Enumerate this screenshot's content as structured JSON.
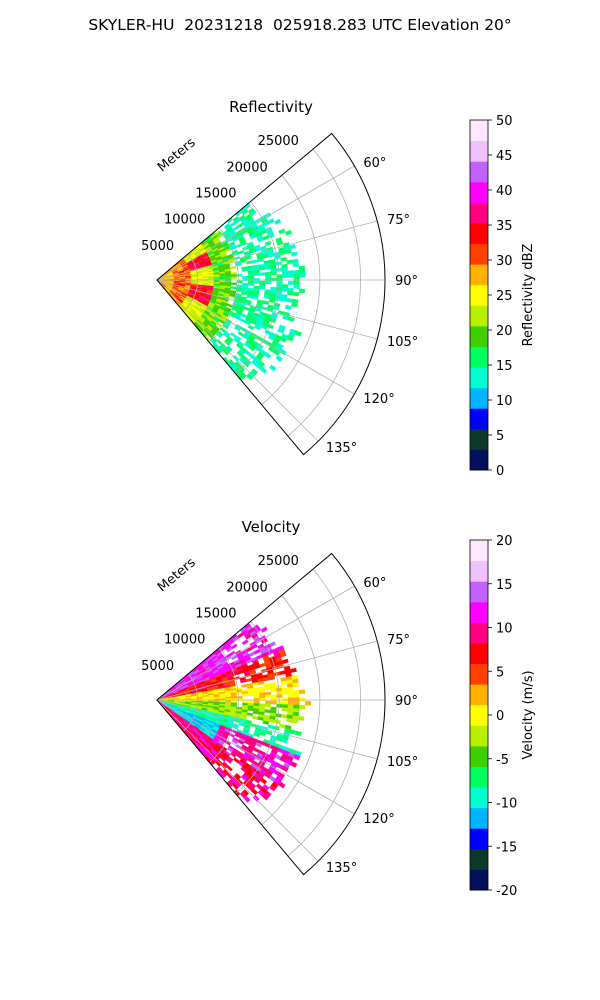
{
  "figure_title": "SKYLER-HU  20231218  025918.283 UTC Elevation 20°",
  "chart_data": [
    {
      "type": "heatmap",
      "projection": "polar-sector",
      "title": "Reflectivity",
      "range_label": "Meters",
      "theta_range_deg": [
        50,
        140
      ],
      "theta_ticks": [
        "60°",
        "75°",
        "90°",
        "105°",
        "120°",
        "135°"
      ],
      "r_range_m": [
        0,
        28000
      ],
      "r_ticks": [
        "5000",
        "10000",
        "15000",
        "20000",
        "25000"
      ],
      "colorbar": {
        "label": "Reflectivity dBZ",
        "range": [
          0,
          50
        ],
        "ticks": [
          "0",
          "5",
          "10",
          "15",
          "20",
          "25",
          "30",
          "35",
          "40",
          "45",
          "50"
        ]
      },
      "palette": [
        "#04105c",
        "#0a3a2a",
        "#0000ff",
        "#00b4ff",
        "#00ffd0",
        "#00ff60",
        "#40d000",
        "#b8f000",
        "#ffff00",
        "#ffb000",
        "#ff4000",
        "#ff0000",
        "#ff0080",
        "#ff00ff",
        "#c060ff",
        "#f0c0ff",
        "#ffe8ff"
      ]
    },
    {
      "type": "heatmap",
      "projection": "polar-sector",
      "title": "Velocity",
      "range_label": "Meters",
      "theta_range_deg": [
        50,
        140
      ],
      "theta_ticks": [
        "60°",
        "75°",
        "90°",
        "105°",
        "120°",
        "135°"
      ],
      "r_range_m": [
        0,
        28000
      ],
      "r_ticks": [
        "5000",
        "10000",
        "15000",
        "20000",
        "25000"
      ],
      "colorbar": {
        "label": "Velocity (m/s)",
        "range": [
          -20,
          20
        ],
        "ticks": [
          "-20",
          "-15",
          "-10",
          "-5",
          "0",
          "5",
          "10",
          "15",
          "20"
        ]
      },
      "palette": [
        "#04105c",
        "#0a3a2a",
        "#0000ff",
        "#00b4ff",
        "#00ffd0",
        "#00ff60",
        "#40d000",
        "#b8f000",
        "#ffff00",
        "#ffb000",
        "#ff4000",
        "#ff0000",
        "#ff0080",
        "#ff00ff",
        "#c060ff",
        "#f0c0ff",
        "#ffe8ff"
      ]
    }
  ]
}
